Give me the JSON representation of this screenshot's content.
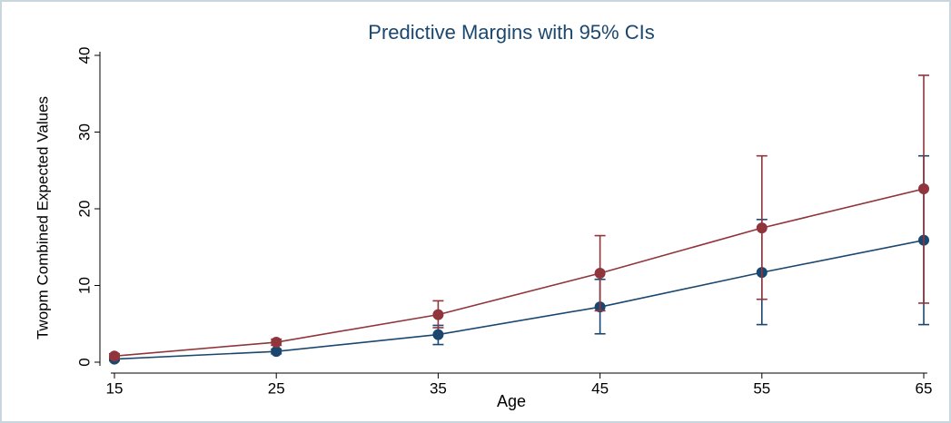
{
  "chart_data": {
    "type": "line",
    "title": "Predictive Margins with 95% CIs",
    "x_label": "Age",
    "y_label": "Twopm Combined Expected Values",
    "x": [
      15,
      25,
      35,
      45,
      55,
      65
    ],
    "series": [
      {
        "color": "#1a476f",
        "values": [
          0.4,
          1.4,
          3.6,
          7.2,
          11.7,
          15.9
        ],
        "lower": [
          0.2,
          1.1,
          2.3,
          3.7,
          4.9,
          4.9
        ],
        "upper": [
          0.6,
          1.7,
          4.8,
          10.8,
          18.6,
          26.9
        ]
      },
      {
        "color": "#90353b",
        "values": [
          0.8,
          2.6,
          6.2,
          11.6,
          17.5,
          22.6
        ],
        "lower": [
          0.5,
          2.2,
          4.5,
          6.7,
          8.2,
          7.7
        ],
        "upper": [
          1.1,
          3.0,
          8.0,
          16.5,
          26.9,
          37.4
        ]
      }
    ],
    "xlim": [
      15,
      65
    ],
    "xticks": [
      15,
      25,
      35,
      45,
      55,
      65
    ],
    "ylim": [
      0,
      40
    ],
    "yticks": [
      0,
      10,
      20,
      30,
      40
    ]
  }
}
